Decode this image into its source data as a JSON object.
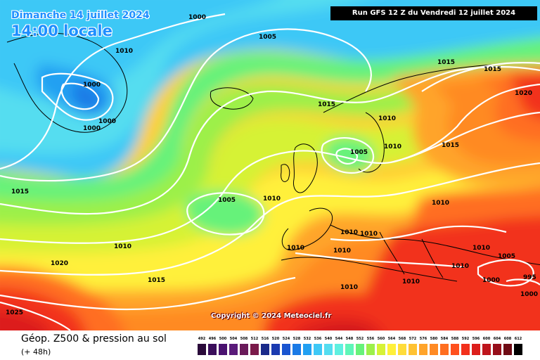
{
  "title": {
    "date": "Dimanche 14 juillet 2024",
    "time": "14:00 locale"
  },
  "run_info": "Run GFS 12 Z du Vendredi 12 juillet 2024",
  "copyright": "Copyright © 2024 Meteociel.fr",
  "legend": {
    "title": "Géop. Z500 & pression au sol",
    "subtitle": "(+ 48h)",
    "scale_values": [
      "492",
      "496",
      "500",
      "504",
      "508",
      "512",
      "516",
      "520",
      "524",
      "528",
      "532",
      "536",
      "540",
      "544",
      "548",
      "552",
      "556",
      "560",
      "564",
      "568",
      "572",
      "576",
      "580",
      "584",
      "588",
      "592",
      "596",
      "600",
      "604",
      "608",
      "612"
    ],
    "scale_colors": [
      "#2a0a3a",
      "#3a0d5a",
      "#4a1270",
      "#5a1a7a",
      "#6a1a5a",
      "#7a1a4a",
      "#1a2a8a",
      "#1a3ab0",
      "#1a55d0",
      "#1a7ae6",
      "#22a0f2",
      "#3ec8f6",
      "#54ddf0",
      "#5ef0e0",
      "#5ef6b8",
      "#66f27a",
      "#9cf04a",
      "#d6f236",
      "#fff03a",
      "#ffdc3a",
      "#ffc232",
      "#ffa42a",
      "#ff8a24",
      "#ff6e20",
      "#ff501e",
      "#f2301c",
      "#dc1e1c",
      "#be141c",
      "#960e1a",
      "#6e0a14",
      "#000000"
    ]
  },
  "isobars": [
    {
      "label": "1000",
      "fill": "#000"
    },
    {
      "label": "1005",
      "fill": "#000"
    },
    {
      "label": "1010",
      "fill": "#000"
    },
    {
      "label": "1000",
      "fill": "#000"
    },
    {
      "label": "1000",
      "fill": "#000"
    },
    {
      "label": "1000",
      "fill": "#000"
    },
    {
      "label": "1015",
      "fill": "#000"
    },
    {
      "label": "1015",
      "fill": "#000"
    },
    {
      "label": "1015",
      "fill": "#000"
    },
    {
      "label": "1020",
      "fill": "#000"
    },
    {
      "label": "1010",
      "fill": "#000"
    },
    {
      "label": "1010",
      "fill": "#000"
    },
    {
      "label": "1005",
      "fill": "#000"
    },
    {
      "label": "1015",
      "fill": "#000"
    },
    {
      "label": "1015",
      "fill": "#000"
    },
    {
      "label": "1005",
      "fill": "#000"
    },
    {
      "label": "1010",
      "fill": "#000"
    },
    {
      "label": "1010",
      "fill": "#000"
    },
    {
      "label": "1010",
      "fill": "#000"
    },
    {
      "label": "1010",
      "fill": "#000"
    },
    {
      "label": "1010",
      "fill": "#000"
    },
    {
      "label": "1010",
      "fill": "#000"
    },
    {
      "label": "1010",
      "fill": "#000"
    },
    {
      "label": "1010",
      "fill": "#000"
    },
    {
      "label": "1010",
      "fill": "#000"
    },
    {
      "label": "1005",
      "fill": "#000"
    },
    {
      "label": "1020",
      "fill": "#000"
    },
    {
      "label": "1015",
      "fill": "#000"
    },
    {
      "label": "1010",
      "fill": "#000"
    },
    {
      "label": "1000",
      "fill": "#000"
    },
    {
      "label": "995",
      "fill": "#000"
    },
    {
      "label": "1000",
      "fill": "#000"
    },
    {
      "label": "1025",
      "fill": "#000"
    },
    {
      "label": "1010",
      "fill": "#000"
    }
  ]
}
